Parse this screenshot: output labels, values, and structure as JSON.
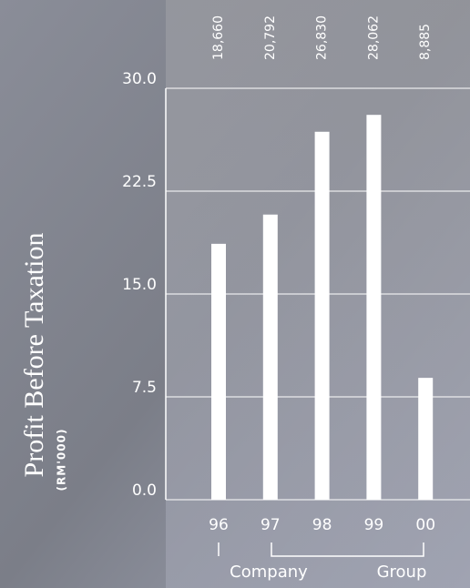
{
  "chart_data": {
    "type": "bar",
    "title": "Profit Before Taxation",
    "subtitle": "(RM'000)",
    "categories": [
      "96",
      "97",
      "98",
      "99",
      "00"
    ],
    "values": [
      18.66,
      20.792,
      26.83,
      28.062,
      8.885
    ],
    "value_labels": [
      "18,660",
      "20,792",
      "26,830",
      "28,062",
      "8,885"
    ],
    "color": "#ffffff",
    "ylim": [
      0,
      30
    ],
    "yticks": [
      {
        "value": 0,
        "label": "0.0"
      },
      {
        "value": 7.5,
        "label": "7.5"
      },
      {
        "value": 15,
        "label": "15.0"
      },
      {
        "value": 22.5,
        "label": "22.5"
      },
      {
        "value": 30,
        "label": "30.0"
      }
    ],
    "grid": true,
    "annotations": [
      "Company",
      "Group"
    ]
  }
}
